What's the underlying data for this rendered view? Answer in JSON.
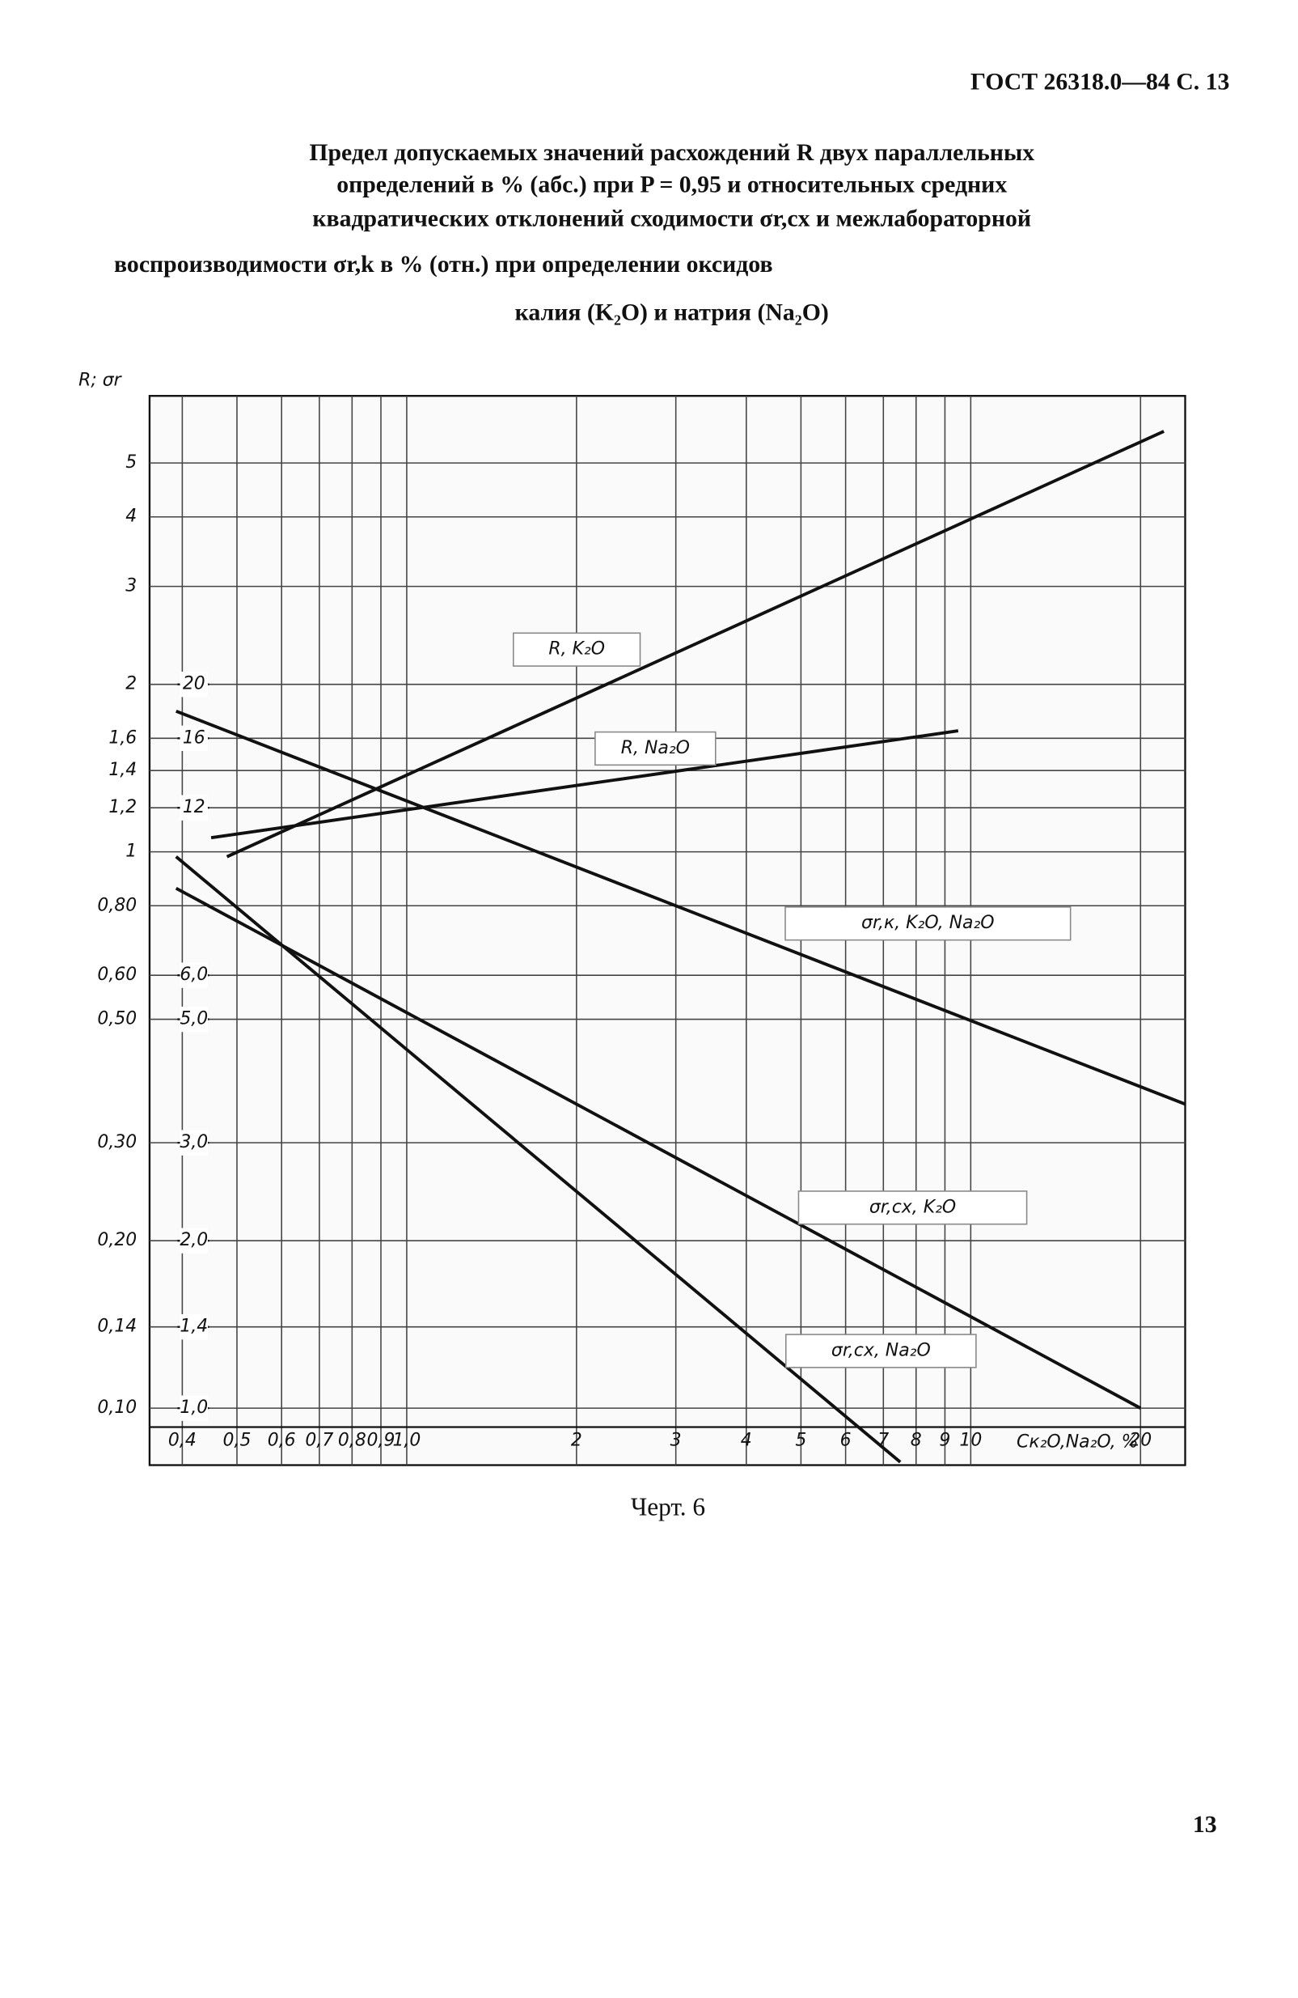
{
  "header": "ГОСТ 26318.0—84 С. 13",
  "chart_data": {
    "type": "line",
    "title_lines": [
      "Предел допускаемых значений расхождений R двух параллельных",
      "определений в % (абс.) при P = 0,95 и относительных средних",
      "квадратических отклонений сходимости σr,cx и межлабораторной",
      "воспроизводимости σr,k в % (отн.) при определении оксидов",
      "калия (K₂O) и натрия (Na₂O)"
    ],
    "y_label": "R; σr",
    "x_label": "Cк₂O,Na₂O, %",
    "x_log": true,
    "y_log": true,
    "grid": true,
    "xlim": [
      0.35,
      24
    ],
    "ylim": [
      0.079,
      6.6
    ],
    "y2lim": [
      0.79,
      66
    ],
    "xticks": [
      {
        "value": 0.4,
        "label": "0,4"
      },
      {
        "value": 0.5,
        "label": "0,5"
      },
      {
        "value": 0.6,
        "label": "0,6"
      },
      {
        "value": 0.7,
        "label": "0,7"
      },
      {
        "value": 0.8,
        "label": "0,8"
      },
      {
        "value": 0.9,
        "label": "0,9"
      },
      {
        "value": 1.0,
        "label": "1,0"
      },
      2,
      3,
      4,
      5,
      6,
      7,
      8,
      9,
      10,
      20
    ],
    "yticks": [
      {
        "value": 0.1,
        "label": "0,10"
      },
      {
        "value": 0.14,
        "label": "0,14"
      },
      {
        "value": 0.2,
        "label": "0,20"
      },
      {
        "value": 0.3,
        "label": "0,30"
      },
      {
        "value": 0.5,
        "label": "0,50"
      },
      {
        "value": 0.6,
        "label": "0,60"
      },
      {
        "value": 0.8,
        "label": "0,80"
      },
      1,
      {
        "value": 1.2,
        "label": "1,2"
      },
      {
        "value": 1.4,
        "label": "1,4"
      },
      {
        "value": 1.6,
        "label": "1,6"
      },
      2,
      3,
      4,
      5
    ],
    "y2ticks": [
      {
        "value": 1.0,
        "label": "1,0"
      },
      {
        "value": 1.4,
        "label": "1,4"
      },
      {
        "value": 2.0,
        "label": "2,0"
      },
      {
        "value": 3.0,
        "label": "3,0"
      },
      {
        "value": 5.0,
        "label": "5,0"
      },
      {
        "value": 6.0,
        "label": "6,0"
      },
      12,
      16,
      20
    ],
    "series": [
      {
        "name": "R, K₂O",
        "color": "#111111",
        "axis": "y",
        "x": [
          0.48,
          22
        ],
        "values": [
          0.98,
          5.7
        ]
      },
      {
        "name": "R, Na₂O",
        "color": "#111111",
        "axis": "y",
        "x": [
          0.45,
          9.5
        ],
        "values": [
          1.06,
          1.65
        ]
      },
      {
        "name": "σr,к, K₂O, Na₂O",
        "color": "#111111",
        "axis": "y2",
        "x": [
          0.39,
          24
        ],
        "values": [
          17.9,
          3.52
        ]
      },
      {
        "name": "σr,cx, K₂O",
        "color": "#111111",
        "axis": "y2",
        "x": [
          0.39,
          20
        ],
        "values": [
          8.6,
          1.0
        ]
      },
      {
        "name": "σr,cx, Na₂O",
        "color": "#111111",
        "axis": "y2",
        "x": [
          0.39,
          7.5
        ],
        "values": [
          9.8,
          0.8
        ]
      }
    ]
  },
  "caption": "Черт. 6",
  "page_number": "13"
}
